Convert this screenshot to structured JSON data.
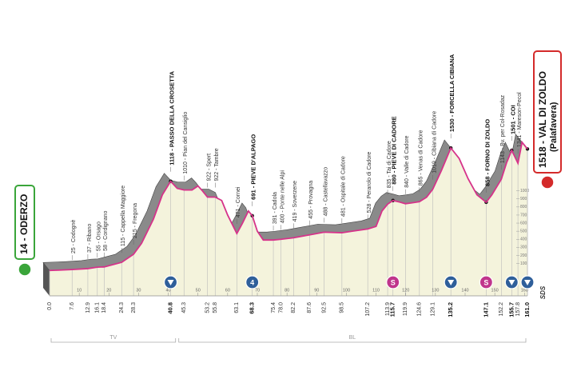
{
  "chart_data": {
    "type": "profile",
    "x": [
      0,
      3,
      7.6,
      12.9,
      16.1,
      18.4,
      24.3,
      28.3,
      31,
      35,
      38,
      40.8,
      43,
      45.3,
      48,
      50,
      51.5,
      53.2,
      55.8,
      58,
      60,
      63.1,
      65,
      67,
      68.3,
      70,
      72,
      75.4,
      78,
      82.2,
      87.6,
      92.5,
      98.5,
      102,
      107.2,
      110,
      112,
      113.9,
      115.7,
      118,
      119.9,
      122,
      124.6,
      127,
      129.1,
      132,
      135.2,
      138,
      141,
      144,
      147.1,
      149,
      152.2,
      154,
      155.7,
      157.8,
      159.2,
      161
    ],
    "values": [
      14,
      18,
      25,
      37,
      55,
      58,
      115,
      215,
      350,
      650,
      950,
      1118,
      1030,
      1010,
      1010,
      1060,
      1000,
      922,
      922,
      880,
      700,
      471,
      600,
      750,
      691,
      500,
      391,
      391,
      400,
      419,
      455,
      488,
      481,
      500,
      528,
      560,
      750,
      835,
      880,
      860,
      840,
      850,
      865,
      920,
      1019,
      1250,
      1530,
      1400,
      1150,
      950,
      858,
      950,
      1143,
      1350,
      1501,
      1341,
      1600,
      1518
    ],
    "line_color": "#d6338a",
    "face_color": "#f4f3dc",
    "top_color": "#8a8a8a",
    "xlim": [
      0,
      161
    ],
    "ylim": [
      -300,
      1600
    ],
    "xticks": [
      10,
      20,
      30,
      40,
      50,
      60,
      70,
      80,
      90,
      100,
      110,
      120,
      130,
      140,
      150,
      160
    ],
    "yticks": [
      100,
      200,
      300,
      400,
      500,
      600,
      700,
      800,
      900,
      1000
    ],
    "waypoints": [
      {
        "km": {
          "value": 0,
          "label": "0.0"
        }
      },
      {
        "km": 7.6,
        "label": "25 - Codognè"
      },
      {
        "km": 12.9,
        "label": "37 - Ribano"
      },
      {
        "km": 16.1,
        "label": "55 - Orsago"
      },
      {
        "km": 18.4,
        "label": "58 - Cordignano"
      },
      {
        "km": 24.3,
        "label": "115 - Cappella Maggiore"
      },
      {
        "km": 28.3,
        "label": "215 - Fregona"
      },
      {
        "km": 40.8,
        "label": "1118 - PASSO DELLA CROSETTA",
        "major": true
      },
      {
        "km": 45.3,
        "label": "1010 - Pian del Cansiglio"
      },
      {
        "km": 53.2,
        "label": "922 - Spert"
      },
      {
        "km": 55.8,
        "label": "922 - Tambre"
      },
      {
        "km": 63.1,
        "label": "471 - Cornei"
      },
      {
        "km": 68.3,
        "label": "691 - PIEVE D'ALPAGO",
        "major": true
      },
      {
        "km": 75.4,
        "label": "391 - Cadola"
      },
      {
        "km": {
          "value": 78,
          "label": "78.0"
        },
        "label": "400 - Ponte nelle Alpi"
      },
      {
        "km": 82.2,
        "label": "419 - Soverzene"
      },
      {
        "km": 87.6,
        "label": "455 - Provagna"
      },
      {
        "km": 92.5,
        "label": "488 - Castellavazzo"
      },
      {
        "km": 98.5,
        "label": "481 - Ospitale di Cadore"
      },
      {
        "km": 107.2,
        "label": "528 - Perarolo di Cadore"
      },
      {
        "km": 113.9,
        "label": "835 - Tai di Cadore"
      },
      {
        "km": 115.7,
        "label": "880 - PIEVE DI CADORE",
        "major": true
      },
      {
        "km": 119.9,
        "label": "840 - Valle di Cadore"
      },
      {
        "km": 124.6,
        "label": "865 - Venas di Cadore"
      },
      {
        "km": 129.1,
        "label": "1019 - Cibiana di Cadore"
      },
      {
        "km": 135.2,
        "label": "1530 - FORCELLA CIBIANA",
        "major": true
      },
      {
        "km": 147.1,
        "label": "858 - FORNO DI ZOLDO",
        "major": true
      },
      {
        "km": 152.2,
        "label": "1143 - Bv. per Col-Rosadaz"
      },
      {
        "km": 155.7,
        "label": "1501 - COI",
        "major": true
      },
      {
        "km": 157.8,
        "label": "1341 - Mareson-Pecol"
      },
      {
        "km": {
          "value": 161,
          "label": "161.0"
        },
        "major": true
      }
    ],
    "markers": [
      {
        "km": 40.8,
        "color": "#2f5f9a"
      },
      {
        "km": 68.3,
        "color": "#2f5f9a",
        "text": "4"
      },
      {
        "km": 115.7,
        "color": "#c0358c",
        "text": "S"
      },
      {
        "km": 135.2,
        "color": "#2f5f9a"
      },
      {
        "km": 147.1,
        "color": "#c0358c",
        "text": "S"
      },
      {
        "km": 155.7,
        "color": "#2f5f9a"
      },
      {
        "km": 161,
        "color": "#2f5f9a"
      }
    ],
    "regions": [
      {
        "name": "TV",
        "from": 0,
        "to": 43
      },
      {
        "name": "BL",
        "from": 43,
        "to": 161
      }
    ],
    "start": {
      "label": "14 - ODERZO",
      "color": "#3aa53a"
    },
    "finish": {
      "label": "1518 - VAL DI ZOLDO",
      "sub": "(Palafavera)",
      "color": "#d42a2a"
    },
    "logo": "SDS"
  }
}
